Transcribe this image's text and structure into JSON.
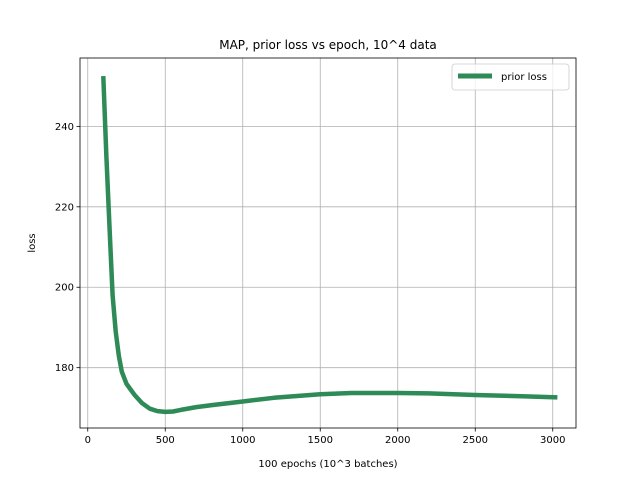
{
  "chart_data": {
    "type": "line",
    "title": "MAP, prior loss vs epoch, 10^4 data",
    "xlabel": "100 epochs (10^3 batches)",
    "ylabel": "loss",
    "xlim": [
      -50,
      3150
    ],
    "ylim": [
      165,
      257
    ],
    "xticks": [
      0,
      500,
      1000,
      1500,
      2000,
      2500,
      3000
    ],
    "yticks": [
      180,
      200,
      220,
      240
    ],
    "grid": true,
    "legend_position": "top-right",
    "series": [
      {
        "name": "prior loss",
        "color": "#2e8b57",
        "x": [
          100,
          120,
          140,
          160,
          180,
          200,
          220,
          250,
          300,
          350,
          400,
          450,
          500,
          550,
          600,
          700,
          800,
          1000,
          1200,
          1500,
          1700,
          2000,
          2200,
          2500,
          2800,
          3030
        ],
        "y": [
          252.5,
          233,
          215,
          198,
          189,
          183,
          179,
          176,
          173.3,
          171.2,
          169.8,
          169.2,
          169.0,
          169.1,
          169.5,
          170.2,
          170.7,
          171.6,
          172.5,
          173.4,
          173.7,
          173.7,
          173.6,
          173.2,
          172.9,
          172.6
        ]
      }
    ]
  }
}
